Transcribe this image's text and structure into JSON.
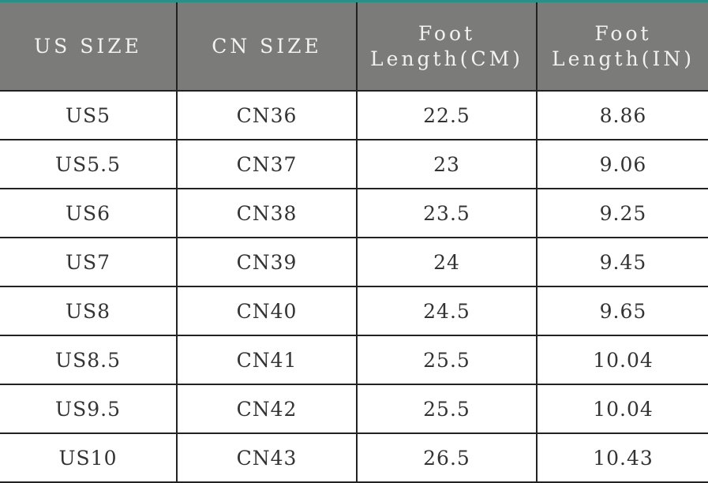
{
  "accent_color": "#2a8f86",
  "header_color": "#7b7b79",
  "headers": [
    {
      "line1": "US SIZE",
      "line2": ""
    },
    {
      "line1": "CN SIZE",
      "line2": ""
    },
    {
      "line1": "Foot",
      "line2": "Length(CM)"
    },
    {
      "line1": "Foot",
      "line2": "Length(IN)"
    }
  ],
  "rows": [
    [
      "US5",
      "CN36",
      "22.5",
      "8.86"
    ],
    [
      "US5.5",
      "CN37",
      "23",
      "9.06"
    ],
    [
      "US6",
      "CN38",
      "23.5",
      "9.25"
    ],
    [
      "US7",
      "CN39",
      "24",
      "9.45"
    ],
    [
      "US8",
      "CN40",
      "24.5",
      "9.65"
    ],
    [
      "US8.5",
      "CN41",
      "25.5",
      "10.04"
    ],
    [
      "US9.5",
      "CN42",
      "25.5",
      "10.04"
    ],
    [
      "US10",
      "CN43",
      "26.5",
      "10.43"
    ]
  ]
}
